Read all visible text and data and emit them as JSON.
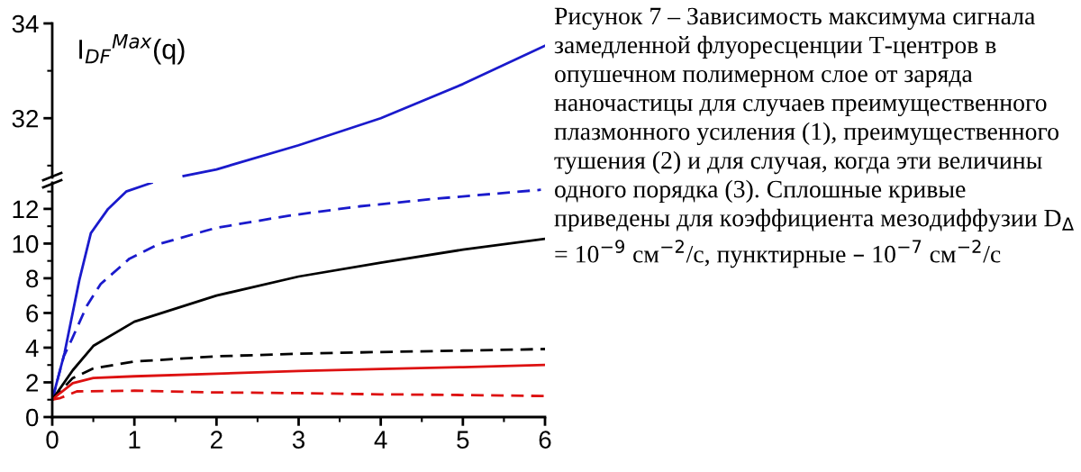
{
  "chart_data": [
    {
      "type": "line",
      "ylabel": "I$_{DF}$$^{Max}$(q)",
      "xlim": [
        0,
        6
      ],
      "ylim": [
        30.75,
        34
      ],
      "yticks": [
        32,
        34
      ],
      "tick_labels": "y",
      "series": [
        {
          "color": "#1a1acc",
          "line_style": "solid",
          "x": [
            1.6,
            2,
            3,
            4,
            5,
            6
          ],
          "values": [
            30.78,
            30.92,
            31.43,
            32.0,
            32.72,
            33.53
          ]
        }
      ]
    },
    {
      "type": "line",
      "xlim": [
        0,
        6
      ],
      "ylim": [
        0,
        13.5
      ],
      "xticks": [
        0,
        1,
        2,
        3,
        4,
        5,
        6
      ],
      "yticks": [
        0,
        2,
        4,
        6,
        8,
        10,
        12
      ],
      "annotations": [
        "Рисунок 7 – Зависимость максимума сигнала замедленной флуоресценции Т-центров в опушечном полимерном слое от заряда наночастицы для случаев преимущественного плазмонного усиления (1), преимущественного тушения (2) и для случая, когда эти величины одного порядка (3). Сплошные кривые приведены для коэффициента мезодиффузии D$_{Δ}$ = 10$^{−9}$ см$^{−2}$/с, пунктирные – 10$^{−7}$ см$^{−2}$/с"
      ],
      "series": [
        {
          "color": "#1a1acc",
          "line_style": "solid",
          "x": [
            0,
            0.15,
            0.33,
            0.47,
            0.68,
            0.9,
            1.21
          ],
          "values": [
            1,
            3.7,
            7.9,
            10.6,
            12.0,
            13.0,
            13.5
          ]
        },
        {
          "color": "#1a1acc",
          "line_style": "dashed",
          "x": [
            0,
            0.14,
            0.24,
            0.42,
            0.59,
            0.94,
            1.29,
            1.99,
            2.87,
            3.75,
            4.63,
            5.95
          ],
          "values": [
            1,
            3.5,
            4.5,
            6.4,
            7.67,
            9.13,
            9.96,
            10.9,
            11.6,
            12.15,
            12.57,
            13.1
          ]
        },
        {
          "color": "#000000",
          "line_style": "solid",
          "x": [
            0,
            0.25,
            0.5,
            1,
            2,
            3,
            4,
            5,
            6
          ],
          "values": [
            1,
            2.7,
            4.1,
            5.5,
            7.0,
            8.1,
            8.9,
            9.65,
            10.27
          ]
        },
        {
          "color": "#000000",
          "line_style": "dashed",
          "x": [
            0,
            0.25,
            0.5,
            1,
            2,
            3,
            4,
            5,
            6
          ],
          "values": [
            1,
            2.25,
            2.8,
            3.2,
            3.5,
            3.65,
            3.75,
            3.83,
            3.92
          ]
        },
        {
          "color": "#dd1111",
          "line_style": "solid",
          "x": [
            0,
            0.1,
            0.25,
            0.5,
            1,
            2,
            3,
            4,
            5,
            6
          ],
          "values": [
            1,
            1.4,
            1.95,
            2.25,
            2.35,
            2.5,
            2.65,
            2.77,
            2.88,
            3.0
          ]
        },
        {
          "color": "#dd1111",
          "line_style": "dashed",
          "x": [
            0,
            0.1,
            0.3,
            1,
            2,
            3,
            4,
            5,
            6
          ],
          "values": [
            1,
            1.1,
            1.48,
            1.52,
            1.42,
            1.38,
            1.31,
            1.27,
            1.21
          ]
        }
      ]
    }
  ]
}
